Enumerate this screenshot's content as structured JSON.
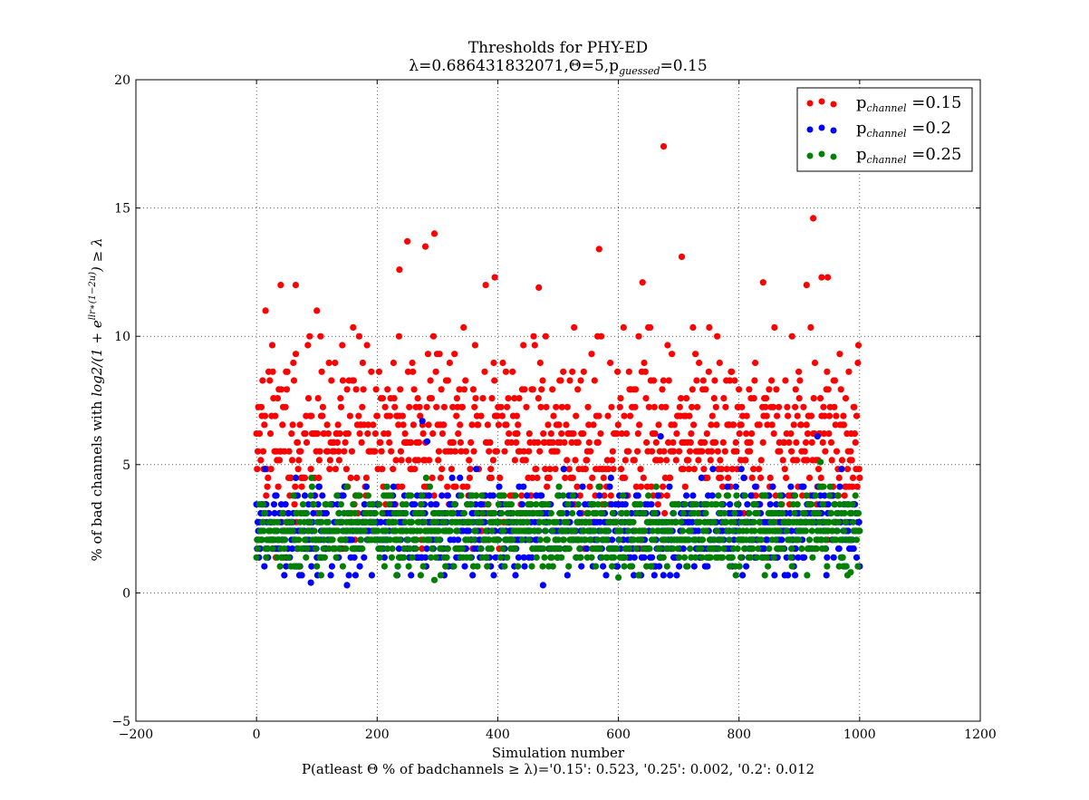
{
  "chart_data": {
    "type": "scatter",
    "title": "Thresholds for PHY-ED",
    "subtitle": {
      "prefix": "λ=0.686431832071,Θ=5,p",
      "subscript": "guessed",
      "suffix": "=0.15"
    },
    "xlabel": "Simulation number",
    "ylabel": "% of bad channels with log2/(1 + e^(llr*(1−2u))) ≥ λ",
    "ylabel_parts": {
      "prefix": "% of bad channels with ",
      "math_a": "log2/(1 + e",
      "sup": "llr∗(1−2u)",
      "math_b": ") ≥ λ"
    },
    "footer": "P(atleast Θ % of badchannels ≥ λ)='0.15': 0.523, '0.25': 0.002, '0.2': 0.012",
    "xlim": [
      -200,
      1200
    ],
    "ylim": [
      -5,
      20
    ],
    "xticks": [
      "−200",
      "0",
      "200",
      "400",
      "600",
      "800",
      "1000",
      "1200"
    ],
    "yticks": [
      "−5",
      "0",
      "5",
      "10",
      "15",
      "20"
    ],
    "grid": true,
    "legend_position": "top-right",
    "series": [
      {
        "name": "p_channel =0.15",
        "legend_prefix": "p",
        "legend_sub": "channel",
        "legend_suffix": " =0.15",
        "color": "#ff0000",
        "x_range": [
          0,
          1000
        ],
        "n_points": 1000,
        "typical_range": [
          1.5,
          10.5
        ],
        "mean": 5.8,
        "notable_points": [
          [
            675,
            17.4
          ],
          [
            923,
            14.6
          ],
          [
            295,
            14.0
          ],
          [
            250,
            13.7
          ],
          [
            280,
            13.5
          ],
          [
            568,
            13.4
          ],
          [
            705,
            13.1
          ],
          [
            237,
            12.6
          ],
          [
            395,
            12.3
          ],
          [
            947,
            12.3
          ],
          [
            937,
            12.3
          ],
          [
            640,
            12.1
          ],
          [
            840,
            12.1
          ],
          [
            40,
            12.0
          ],
          [
            65,
            12.0
          ],
          [
            380,
            12.0
          ],
          [
            468,
            11.9
          ],
          [
            912,
            12.0
          ],
          [
            15,
            11.0
          ],
          [
            100,
            11.0
          ]
        ]
      },
      {
        "name": "p_channel =0.2",
        "legend_prefix": "p",
        "legend_sub": "channel",
        "legend_suffix": " =0.2",
        "color": "#0000ff",
        "x_range": [
          0,
          1000
        ],
        "n_points": 1000,
        "typical_range": [
          0.5,
          5.0
        ],
        "mean": 2.5,
        "notable_points": [
          [
            275,
            6.7
          ],
          [
            670,
            6.1
          ],
          [
            930,
            6.1
          ],
          [
            283,
            5.9
          ],
          [
            150,
            0.3
          ],
          [
            475,
            0.3
          ],
          [
            90,
            0.4
          ]
        ]
      },
      {
        "name": "p_channel =0.25",
        "legend_prefix": "p",
        "legend_sub": "channel",
        "legend_suffix": " =0.25",
        "color": "#008000",
        "x_range": [
          0,
          1000
        ],
        "n_points": 1000,
        "typical_range": [
          0.6,
          4.5
        ],
        "mean": 2.4,
        "notable_points": [
          [
            935,
            5.1
          ],
          [
            295,
            0.5
          ],
          [
            600,
            0.6
          ],
          [
            985,
            0.8
          ]
        ]
      }
    ]
  }
}
